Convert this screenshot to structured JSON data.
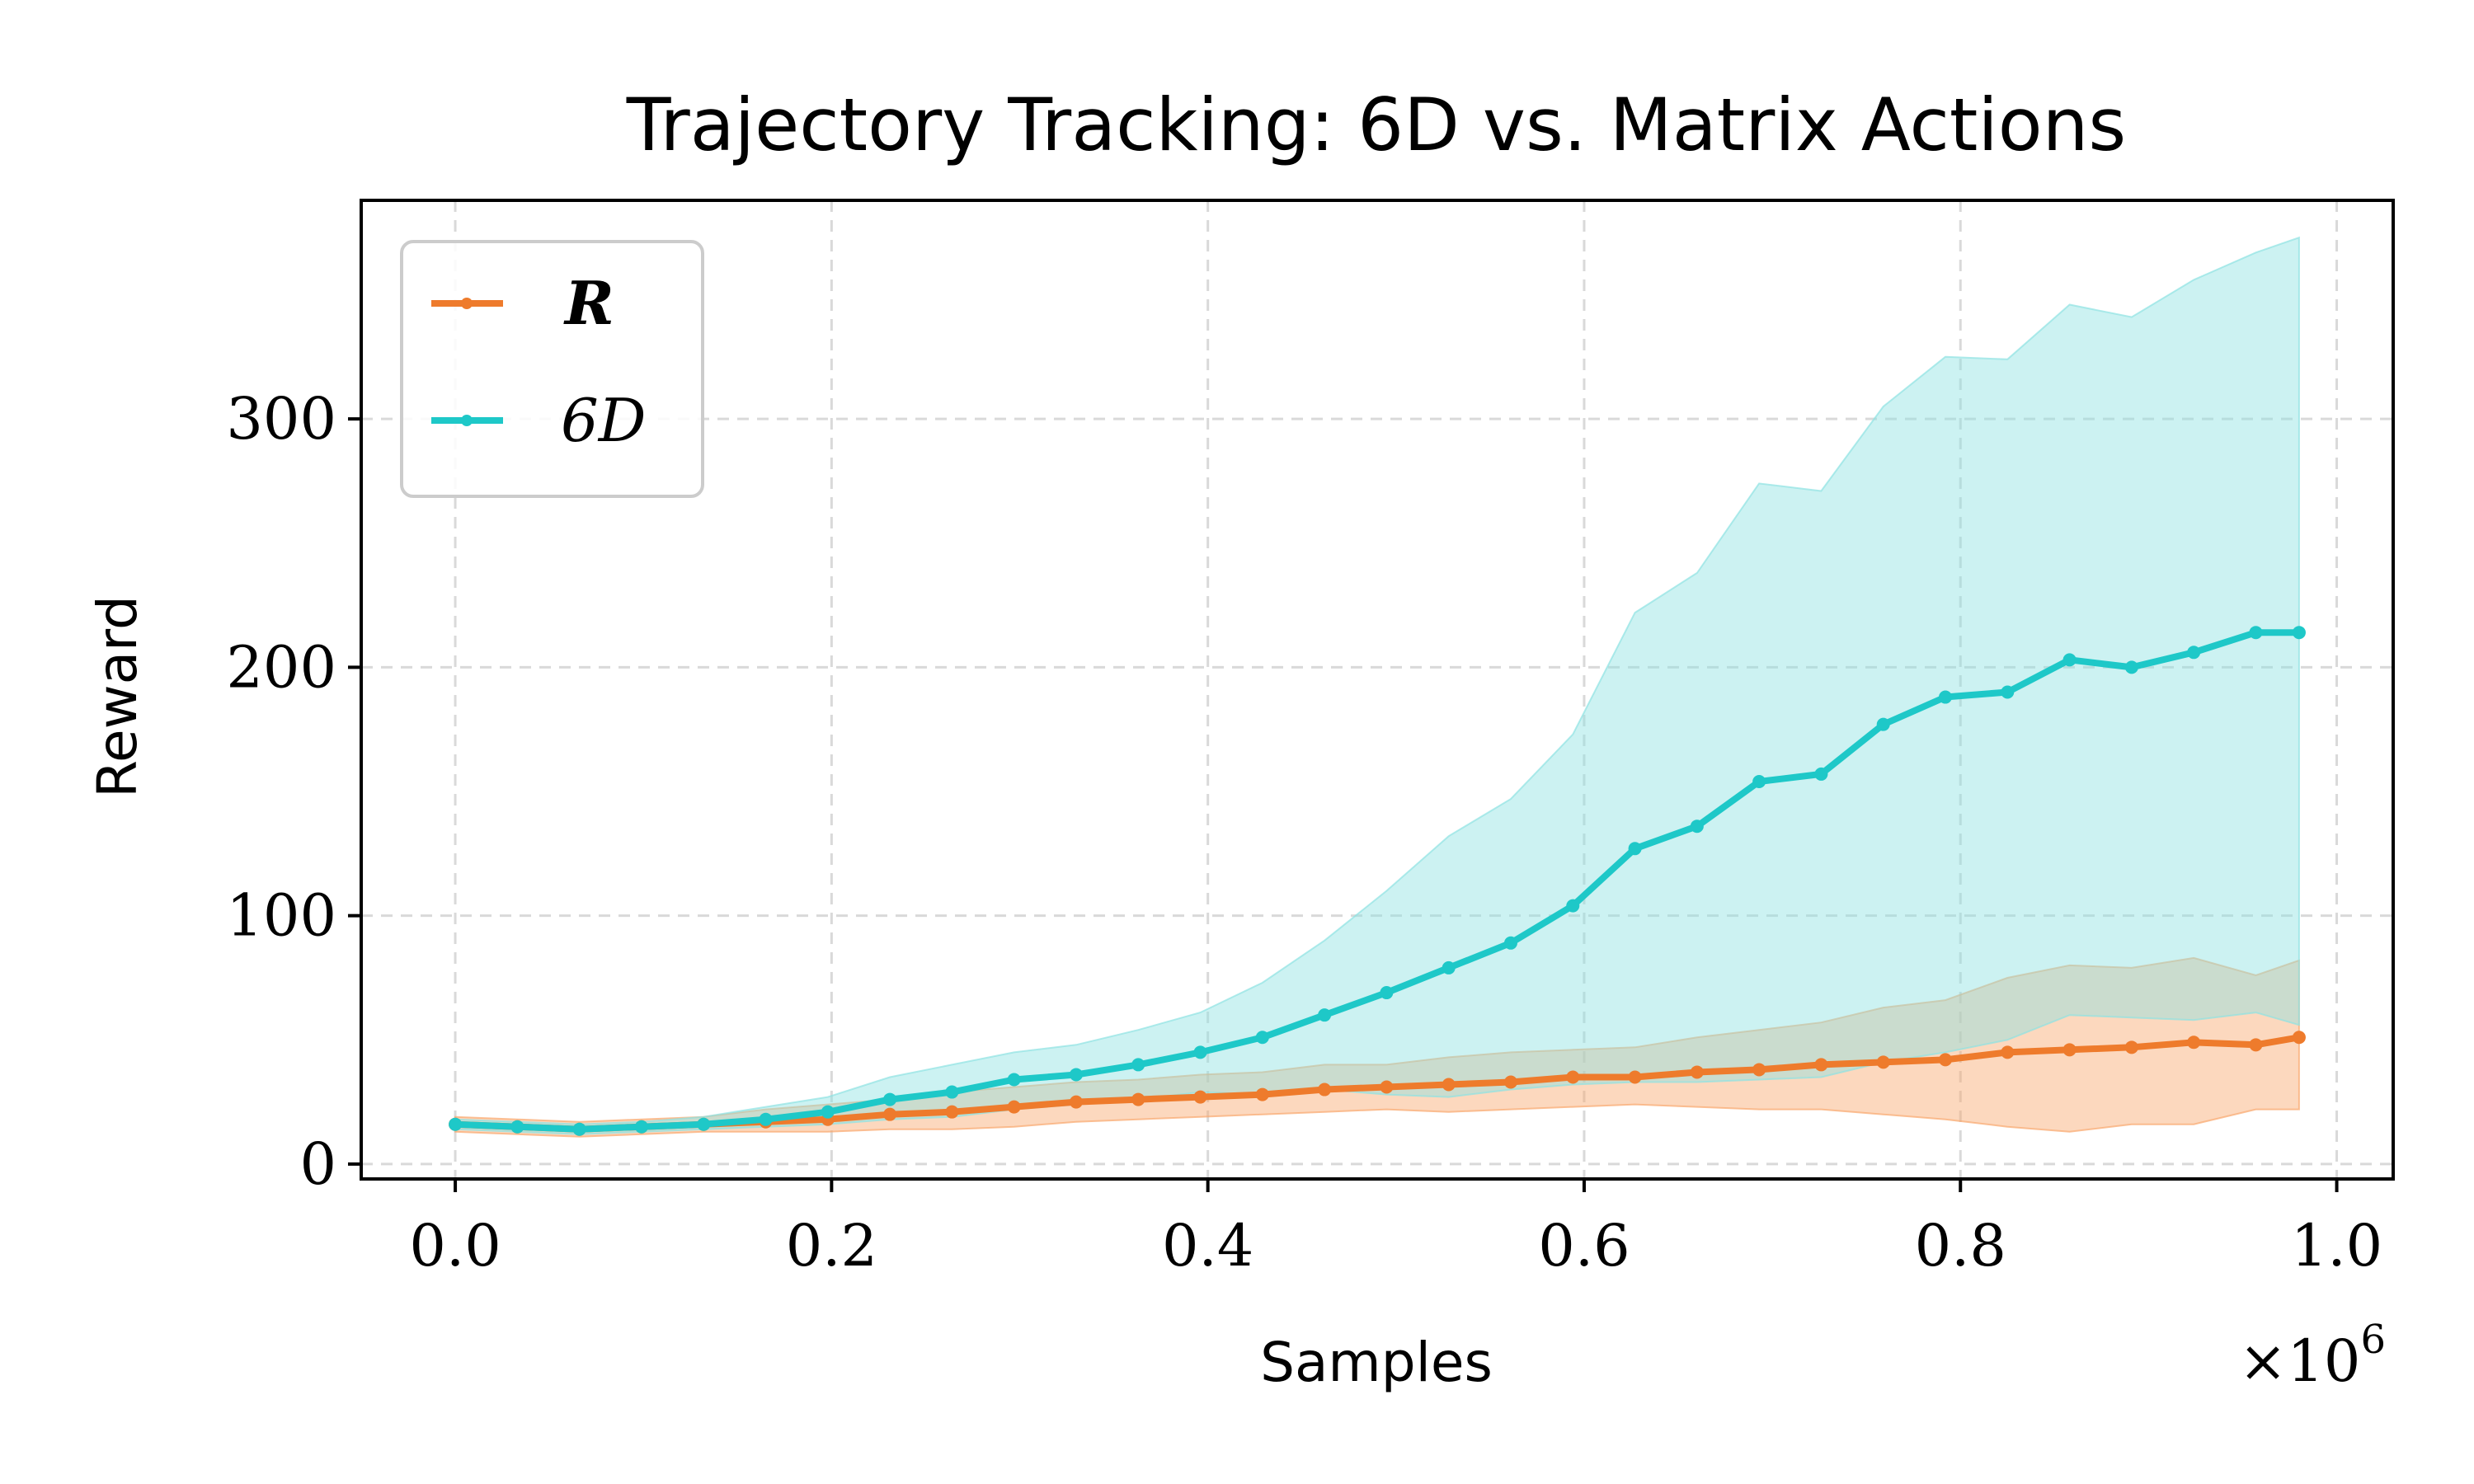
{
  "chart_data": {
    "type": "line",
    "title": "Trajectory Tracking: 6D vs. Matrix Actions",
    "xlabel": "Samples",
    "ylabel": "Reward",
    "x_scale_label": "×10",
    "x_scale_exponent": "6",
    "xlim": [
      -0.05,
      1.03
    ],
    "ylim": [
      -6,
      388
    ],
    "xticks": [
      0.0,
      0.2,
      0.4,
      0.6,
      0.8,
      1.0
    ],
    "xtick_labels": [
      "0.0",
      "0.2",
      "0.4",
      "0.6",
      "0.8",
      "1.0"
    ],
    "yticks": [
      0,
      100,
      200,
      300
    ],
    "ytick_labels": [
      "0",
      "100",
      "200",
      "300"
    ],
    "grid": true,
    "legend_position": "top-left",
    "x": [
      0.0,
      0.033,
      0.066,
      0.099,
      0.132,
      0.165,
      0.198,
      0.231,
      0.264,
      0.297,
      0.33,
      0.363,
      0.396,
      0.429,
      0.462,
      0.495,
      0.528,
      0.561,
      0.594,
      0.627,
      0.66,
      0.693,
      0.726,
      0.759,
      0.792,
      0.825,
      0.858,
      0.891,
      0.924,
      0.957,
      0.98
    ],
    "series": [
      {
        "name": "R",
        "color": "#ee7b2c",
        "fill_color": "#f9a86e",
        "values": [
          16,
          15,
          14,
          15,
          16,
          17,
          18,
          20,
          21,
          23,
          25,
          26,
          27,
          28,
          30,
          31,
          32,
          33,
          35,
          35,
          37,
          38,
          40,
          41,
          42,
          45,
          46,
          47,
          49,
          48,
          51
        ],
        "upper": [
          19,
          18,
          17,
          18,
          19,
          22,
          24,
          26,
          29,
          31,
          33,
          34,
          36,
          37,
          40,
          40,
          43,
          45,
          46,
          47,
          51,
          54,
          57,
          63,
          66,
          75,
          80,
          79,
          83,
          76,
          82
        ],
        "lower": [
          13,
          12,
          11,
          12,
          13,
          13,
          13,
          14,
          14,
          15,
          17,
          18,
          19,
          20,
          21,
          22,
          21,
          22,
          23,
          24,
          23,
          22,
          22,
          20,
          18,
          15,
          13,
          16,
          16,
          22,
          22
        ]
      },
      {
        "name": "6D",
        "color": "#1ec8c8",
        "fill_color": "#8ee2e2",
        "values": [
          16,
          15,
          14,
          15,
          16,
          18,
          21,
          26,
          29,
          34,
          36,
          40,
          45,
          51,
          60,
          69,
          79,
          89,
          104,
          127,
          136,
          154,
          157,
          177,
          188,
          190,
          203,
          200,
          206,
          214,
          214
        ],
        "upper": [
          18,
          17,
          16,
          17,
          19,
          23,
          27,
          35,
          40,
          45,
          48,
          54,
          61,
          73,
          90,
          110,
          132,
          147,
          173,
          222,
          238,
          274,
          271,
          305,
          325,
          324,
          346,
          341,
          356,
          367,
          373
        ],
        "lower": [
          14,
          13,
          12,
          13,
          14,
          15,
          16,
          18,
          19,
          22,
          24,
          26,
          29,
          28,
          30,
          28,
          27,
          30,
          32,
          33,
          33,
          34,
          35,
          41,
          45,
          50,
          60,
          59,
          58,
          61,
          56
        ]
      }
    ]
  }
}
